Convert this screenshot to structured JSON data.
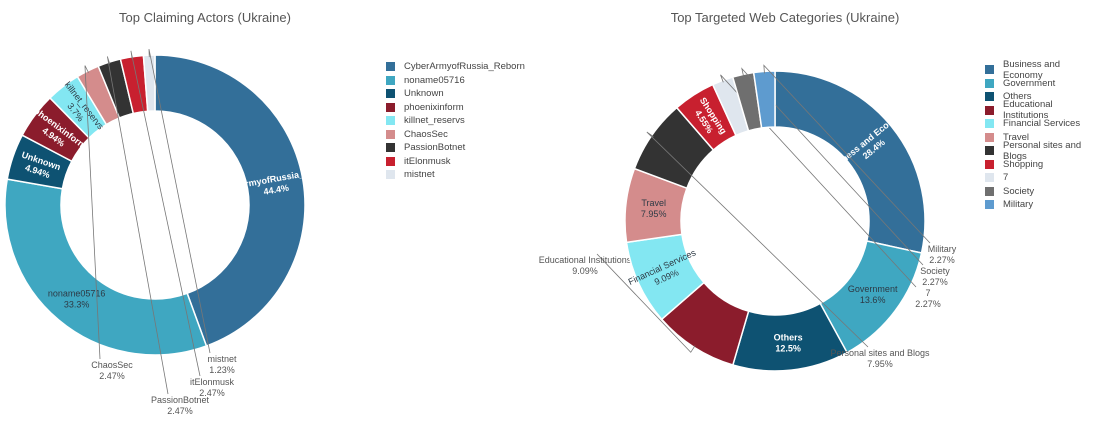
{
  "chart_data": [
    {
      "type": "donut",
      "title": "Top Claiming Actors (Ukraine)",
      "legend_position": "right",
      "series": [
        {
          "name": "CyberArmyofRussia_Reborn",
          "value": 44.4,
          "label": "44.4%",
          "color": "#336f99"
        },
        {
          "name": "noname05716",
          "value": 33.3,
          "label": "33.3%",
          "color": "#3fa7c1"
        },
        {
          "name": "Unknown",
          "value": 4.94,
          "label": "4.94%",
          "color": "#0e5272"
        },
        {
          "name": "phoenixinform",
          "value": 4.94,
          "label": "4.94%",
          "color": "#8b1c2c"
        },
        {
          "name": "killnet_reservs",
          "value": 3.7,
          "label": "3.7%",
          "color": "#83e7f2"
        },
        {
          "name": "ChaosSec",
          "value": 2.47,
          "label": "2.47%",
          "color": "#d48c8c"
        },
        {
          "name": "PassionBotnet",
          "value": 2.47,
          "label": "2.47%",
          "color": "#333333"
        },
        {
          "name": "itElonmusk",
          "value": 2.47,
          "label": "2.47%",
          "color": "#c8202f"
        },
        {
          "name": "mistnet",
          "value": 1.23,
          "label": "1.23%",
          "color": "#dfe6ee"
        }
      ]
    },
    {
      "type": "donut",
      "title": "Top Targeted Web Categories (Ukraine)",
      "legend_position": "right",
      "series": [
        {
          "name": "Business and Economy",
          "value": 28.4,
          "label": "28.4%",
          "color": "#336f99"
        },
        {
          "name": "Government",
          "value": 13.6,
          "label": "13.6%",
          "color": "#3fa7c1"
        },
        {
          "name": "Others",
          "value": 12.5,
          "label": "12.5%",
          "color": "#0e5272"
        },
        {
          "name": "Educational Institutions",
          "value": 9.09,
          "label": "9.09%",
          "color": "#8b1c2c"
        },
        {
          "name": "Financial Services",
          "value": 9.09,
          "label": "9.09%",
          "color": "#83e7f2"
        },
        {
          "name": "Travel",
          "value": 7.95,
          "label": "7.95%",
          "color": "#d48c8c"
        },
        {
          "name": "Personal sites and Blogs",
          "value": 7.95,
          "label": "7.95%",
          "color": "#333333"
        },
        {
          "name": "Shopping",
          "value": 4.55,
          "label": "4.55%",
          "color": "#c8202f"
        },
        {
          "name": "7",
          "value": 2.27,
          "label": "2.27%",
          "color": "#dfe6ee"
        },
        {
          "name": "Society",
          "value": 2.27,
          "label": "2.27%",
          "color": "#6f6f6f"
        },
        {
          "name": "Military",
          "value": 2.27,
          "label": "2.27%",
          "color": "#5e9bcf"
        }
      ]
    }
  ]
}
